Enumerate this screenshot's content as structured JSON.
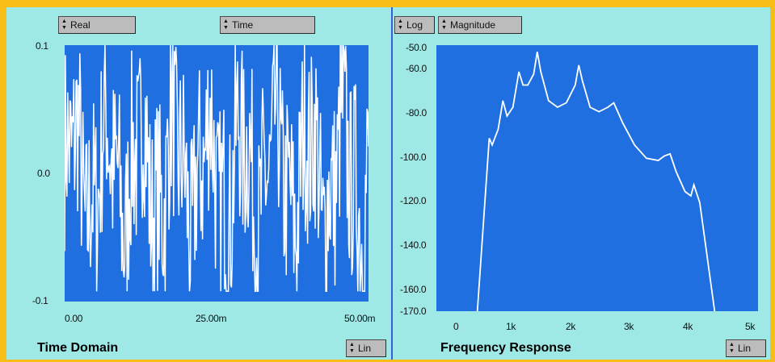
{
  "time_panel": {
    "signal_selector": "Real",
    "x_axis_selector": "Time",
    "title": "Time Domain",
    "scale_selector": "Lin",
    "y_ticks": [
      "0.1",
      "0.0",
      "-0.1"
    ],
    "x_ticks": [
      "0.00",
      "25.00m",
      "50.00m"
    ]
  },
  "freq_panel": {
    "scale_type_selector": "Log",
    "display_selector": "Magnitude",
    "title": "Frequency Response",
    "scale_selector": "Lin",
    "y_ticks": [
      "-50.0",
      "-60.0",
      "-80.0",
      "-100.0",
      "-120.0",
      "-140.0",
      "-160.0",
      "-170.0"
    ],
    "x_ticks": [
      "0",
      "1k",
      "2k",
      "3k",
      "4k",
      "5k"
    ]
  },
  "colors": {
    "border": "#f9bd17",
    "panel_background": "#9ee8e6",
    "plot_background": "#1f6fe0",
    "trace": "#ffffff",
    "divider": "#3c5dd6"
  },
  "icons": {
    "updown": "up-down-arrow-icon"
  },
  "chart_data": [
    {
      "type": "line",
      "title": "Time Domain",
      "xlabel": "",
      "ylabel": "",
      "xlim": [
        0,
        0.05
      ],
      "ylim": [
        -0.1,
        0.1
      ],
      "grid": false,
      "series": [
        {
          "x_range": [
            0,
            0.05
          ],
          "samples": 400,
          "values": "dense noisy signal spanning roughly -0.09 to 0.1"
        }
      ]
    },
    {
      "type": "line",
      "title": "Frequency Response",
      "xlabel": "",
      "ylabel": "",
      "xlim": [
        0,
        5000
      ],
      "ylim": [
        -170,
        -50
      ],
      "grid": false,
      "series": [
        {
          "x": [
            350,
            550,
            600,
            700,
            780,
            850,
            950,
            1050,
            1120,
            1200,
            1300,
            1360,
            1420,
            1550,
            1700,
            1850,
            2000,
            2060,
            2120,
            2250,
            2400,
            2550,
            2650,
            2800,
            3000,
            3200,
            3400,
            3500,
            3600,
            3700,
            3850,
            3950,
            4000,
            4100,
            4350
          ],
          "y": [
            -170,
            -92,
            -95,
            -88,
            -75,
            -82,
            -78,
            -62,
            -68,
            -68,
            -63,
            -53,
            -62,
            -75,
            -78,
            -76,
            -68,
            -59,
            -66,
            -78,
            -80,
            -78,
            -76,
            -85,
            -95,
            -101,
            -102,
            -100,
            -99,
            -107,
            -116,
            -118,
            -113,
            -121,
            -170
          ]
        }
      ]
    }
  ]
}
